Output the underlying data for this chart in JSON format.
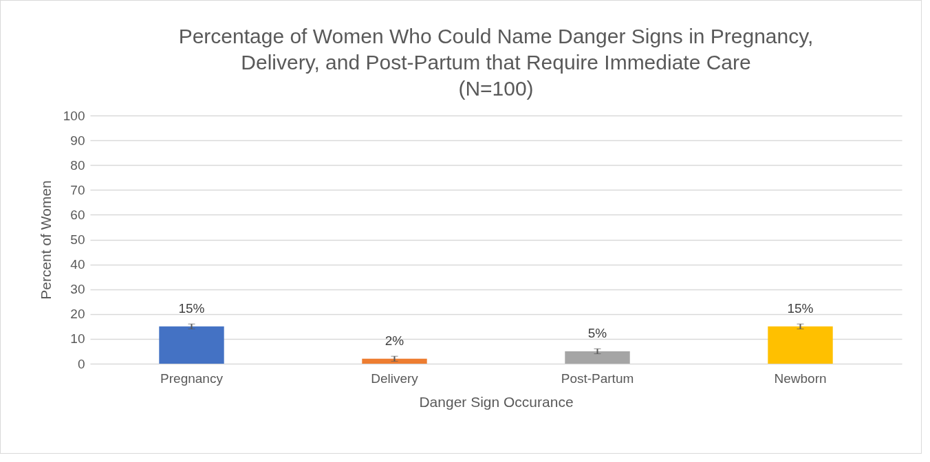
{
  "chart_data": {
    "type": "bar",
    "title": "Percentage of Women Who Could Name Danger Signs in Pregnancy,\nDelivery, and Post-Partum that Require Immediate Care\n(N=100)",
    "xlabel": "Danger Sign Occurance",
    "ylabel": "Percent of Women",
    "categories": [
      "Pregnancy",
      "Delivery",
      "Post-Partum",
      "Newborn"
    ],
    "values": [
      15,
      2,
      5,
      15
    ],
    "colors": [
      "#4472c4",
      "#ed7d31",
      "#a5a5a5",
      "#ffc000"
    ],
    "errors": [
      1,
      1,
      1,
      1
    ],
    "value_labels": [
      "15%",
      "2%",
      "5%",
      "15%"
    ],
    "ylim": [
      0,
      100
    ],
    "yticks": [
      0,
      10,
      20,
      30,
      40,
      50,
      60,
      70,
      80,
      90,
      100
    ],
    "grid": "y"
  }
}
